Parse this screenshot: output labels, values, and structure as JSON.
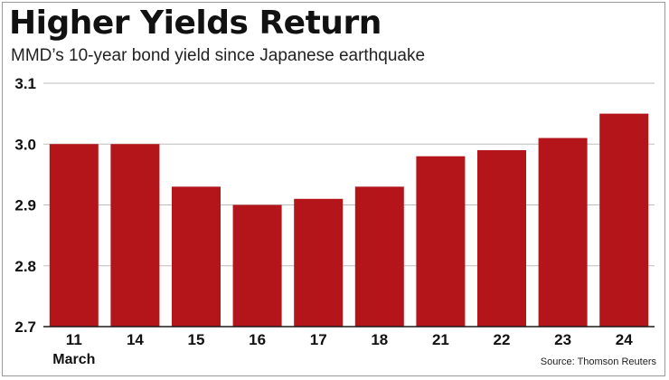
{
  "chart_data": {
    "type": "bar",
    "title": "Higher Yields Return",
    "subtitle": "MMD’s 10-year bond yield since Japanese earthquake",
    "categories": [
      "11",
      "14",
      "15",
      "16",
      "17",
      "18",
      "21",
      "22",
      "23",
      "24"
    ],
    "category_sublabel": {
      "index": 0,
      "text": "March"
    },
    "values": [
      3.0,
      3.0,
      2.93,
      2.9,
      2.91,
      2.93,
      2.98,
      2.99,
      3.01,
      3.05
    ],
    "ylim": [
      2.7,
      3.1
    ],
    "yticks": [
      "2.7",
      "2.8",
      "2.9",
      "3.0",
      "3.1"
    ],
    "grid": true,
    "xlabel": "",
    "ylabel": "",
    "source": "Source: Thomson Reuters",
    "bar_color": "#b3151b",
    "grid_color": "#bdbdbd"
  }
}
